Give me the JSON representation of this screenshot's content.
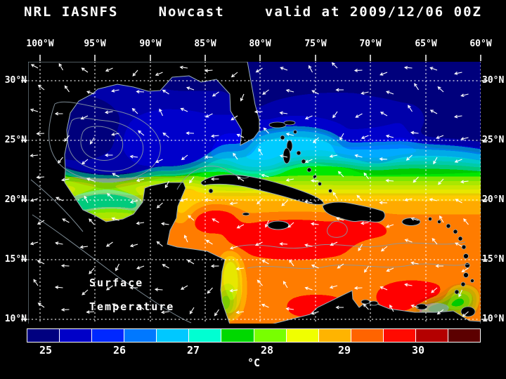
{
  "title": {
    "program": "NRL IASNFS",
    "product": "Nowcast",
    "valid": "valid at 2009/12/06 00Z"
  },
  "map": {
    "lon_labels": [
      "100°W",
      "95°W",
      "90°W",
      "85°W",
      "80°W",
      "75°W",
      "70°W",
      "65°W",
      "60°W"
    ],
    "lat_labels_left": [
      "30°N",
      "25°N",
      "20°N",
      "15°N",
      "10°N"
    ],
    "lat_labels_right": [
      "30°N",
      "25°N",
      "20°N",
      "15°N",
      "10°N"
    ],
    "annotation": {
      "line1": "Surface",
      "line2": "Temperature"
    },
    "extent": {
      "west": "100°W",
      "east": "60°W",
      "north": "30°N",
      "south": "10°N"
    }
  },
  "colorbar": {
    "tick_labels": [
      "25",
      "26",
      "27",
      "28",
      "29",
      "30"
    ],
    "unit": "°C",
    "segment_colors": [
      "#000080",
      "#0000c8",
      "#0028ff",
      "#0078ff",
      "#00c8ff",
      "#00ffd2",
      "#00d800",
      "#78ff00",
      "#f0ff00",
      "#ffb400",
      "#ff6400",
      "#ff0a00",
      "#b40000",
      "#5c0000"
    ]
  },
  "colors": {
    "background": "#000000",
    "land": "#000000",
    "grid": "#ffffff",
    "vectors": "#ffffff",
    "contours": "#8a9aa5",
    "coastline": "#9ab0ba",
    "text": "#ffffff"
  }
}
